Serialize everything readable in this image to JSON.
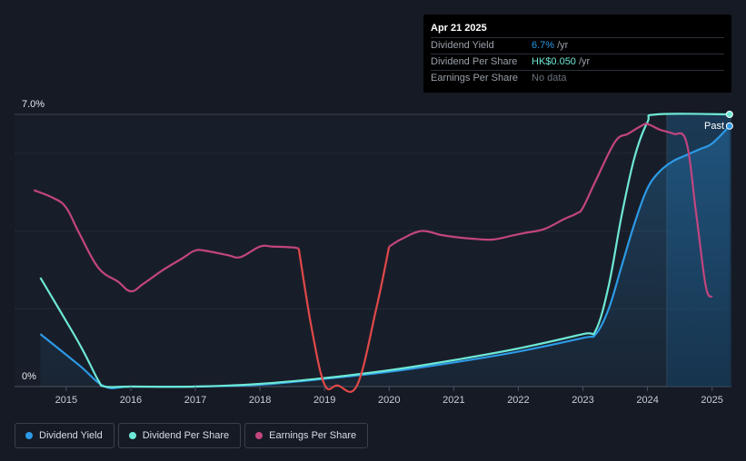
{
  "tooltip": {
    "date": "Apr 21 2025",
    "rows": [
      {
        "label": "Dividend Yield",
        "value": "6.7%",
        "unit": "/yr",
        "color": "#2c9ae6"
      },
      {
        "label": "Dividend Per Share",
        "value": "HK$0.050",
        "unit": "/yr",
        "color": "#6ee8d6"
      },
      {
        "label": "Earnings Per Share",
        "value": "No data",
        "unit": "",
        "color": "#6b727c"
      }
    ]
  },
  "legend": [
    {
      "label": "Dividend Yield",
      "color": "#2c9ae6"
    },
    {
      "label": "Dividend Per Share",
      "color": "#6ee8d6"
    },
    {
      "label": "Earnings Per Share",
      "color": "#c2457f"
    }
  ],
  "chart_data": {
    "type": "line",
    "y_axis_labels": [
      "7.0%",
      "0%"
    ],
    "ylim": [
      0,
      7.0
    ],
    "xlim": [
      2014.2,
      2025.3
    ],
    "x_ticks": [
      2015,
      2016,
      2017,
      2018,
      2019,
      2020,
      2021,
      2022,
      2023,
      2024,
      2025
    ],
    "past_label": "Past",
    "past_start": 2024.3,
    "grid": true,
    "series": [
      {
        "name": "Dividend Yield",
        "color": "#2c9ae6",
        "fill": true,
        "points": [
          [
            2014.6,
            1.35
          ],
          [
            2015.2,
            0.55
          ],
          [
            2015.6,
            0
          ],
          [
            2016,
            0
          ],
          [
            2017,
            0
          ],
          [
            2018,
            0.05
          ],
          [
            2019,
            0.2
          ],
          [
            2020,
            0.38
          ],
          [
            2021,
            0.62
          ],
          [
            2022,
            0.9
          ],
          [
            2023,
            1.25
          ],
          [
            2023.2,
            1.35
          ],
          [
            2023.4,
            2.0
          ],
          [
            2023.6,
            3.1
          ],
          [
            2023.8,
            4.2
          ],
          [
            2024.0,
            5.1
          ],
          [
            2024.2,
            5.55
          ],
          [
            2024.4,
            5.8
          ],
          [
            2024.6,
            5.95
          ],
          [
            2024.8,
            6.1
          ],
          [
            2025.0,
            6.25
          ],
          [
            2025.27,
            6.7
          ]
        ]
      },
      {
        "name": "Dividend Per Share",
        "color": "#6ee8d6",
        "fill": false,
        "points": [
          [
            2014.6,
            2.8
          ],
          [
            2015.1,
            1.4
          ],
          [
            2015.3,
            0.8
          ],
          [
            2015.5,
            0.15
          ],
          [
            2015.6,
            0
          ],
          [
            2016,
            0
          ],
          [
            2017,
            0
          ],
          [
            2018,
            0.07
          ],
          [
            2019,
            0.22
          ],
          [
            2020,
            0.42
          ],
          [
            2021,
            0.68
          ],
          [
            2022,
            0.98
          ],
          [
            2023,
            1.35
          ],
          [
            2023.2,
            1.45
          ],
          [
            2023.4,
            2.6
          ],
          [
            2023.6,
            4.4
          ],
          [
            2023.8,
            5.9
          ],
          [
            2024.0,
            6.8
          ],
          [
            2024.15,
            7.0
          ],
          [
            2025.27,
            7.0
          ]
        ]
      },
      {
        "name": "Earnings Per Share",
        "color": "#c2457f",
        "fill": false,
        "points": [
          [
            2014.5,
            5.05
          ],
          [
            2014.8,
            4.85
          ],
          [
            2015.0,
            4.6
          ],
          [
            2015.2,
            3.95
          ],
          [
            2015.5,
            3.05
          ],
          [
            2015.8,
            2.7
          ],
          [
            2016.0,
            2.45
          ],
          [
            2016.2,
            2.65
          ],
          [
            2016.5,
            3.0
          ],
          [
            2016.8,
            3.3
          ],
          [
            2017.0,
            3.5
          ],
          [
            2017.2,
            3.48
          ],
          [
            2017.5,
            3.38
          ],
          [
            2017.7,
            3.33
          ],
          [
            2018.0,
            3.6
          ],
          [
            2018.2,
            3.6
          ],
          [
            2018.5,
            3.58
          ],
          [
            2018.6,
            3.55
          ],
          [
            2018.8,
            1.5
          ],
          [
            2019.0,
            0.05
          ],
          [
            2019.2,
            0.03
          ],
          [
            2019.5,
            0.02
          ],
          [
            2019.8,
            2.0
          ],
          [
            2020.0,
            3.6
          ],
          [
            2020.2,
            3.8
          ],
          [
            2020.5,
            4.0
          ],
          [
            2020.8,
            3.9
          ],
          [
            2021.0,
            3.85
          ],
          [
            2021.3,
            3.8
          ],
          [
            2021.6,
            3.78
          ],
          [
            2021.9,
            3.88
          ],
          [
            2022.1,
            3.95
          ],
          [
            2022.4,
            4.05
          ],
          [
            2022.7,
            4.3
          ],
          [
            2022.9,
            4.45
          ],
          [
            2023.0,
            4.6
          ],
          [
            2023.2,
            5.3
          ],
          [
            2023.5,
            6.3
          ],
          [
            2023.7,
            6.5
          ],
          [
            2023.9,
            6.7
          ],
          [
            2024.0,
            6.75
          ],
          [
            2024.2,
            6.6
          ],
          [
            2024.4,
            6.5
          ],
          [
            2024.6,
            6.3
          ],
          [
            2024.75,
            4.5
          ],
          [
            2024.9,
            2.6
          ],
          [
            2025.0,
            2.3
          ]
        ]
      }
    ]
  }
}
